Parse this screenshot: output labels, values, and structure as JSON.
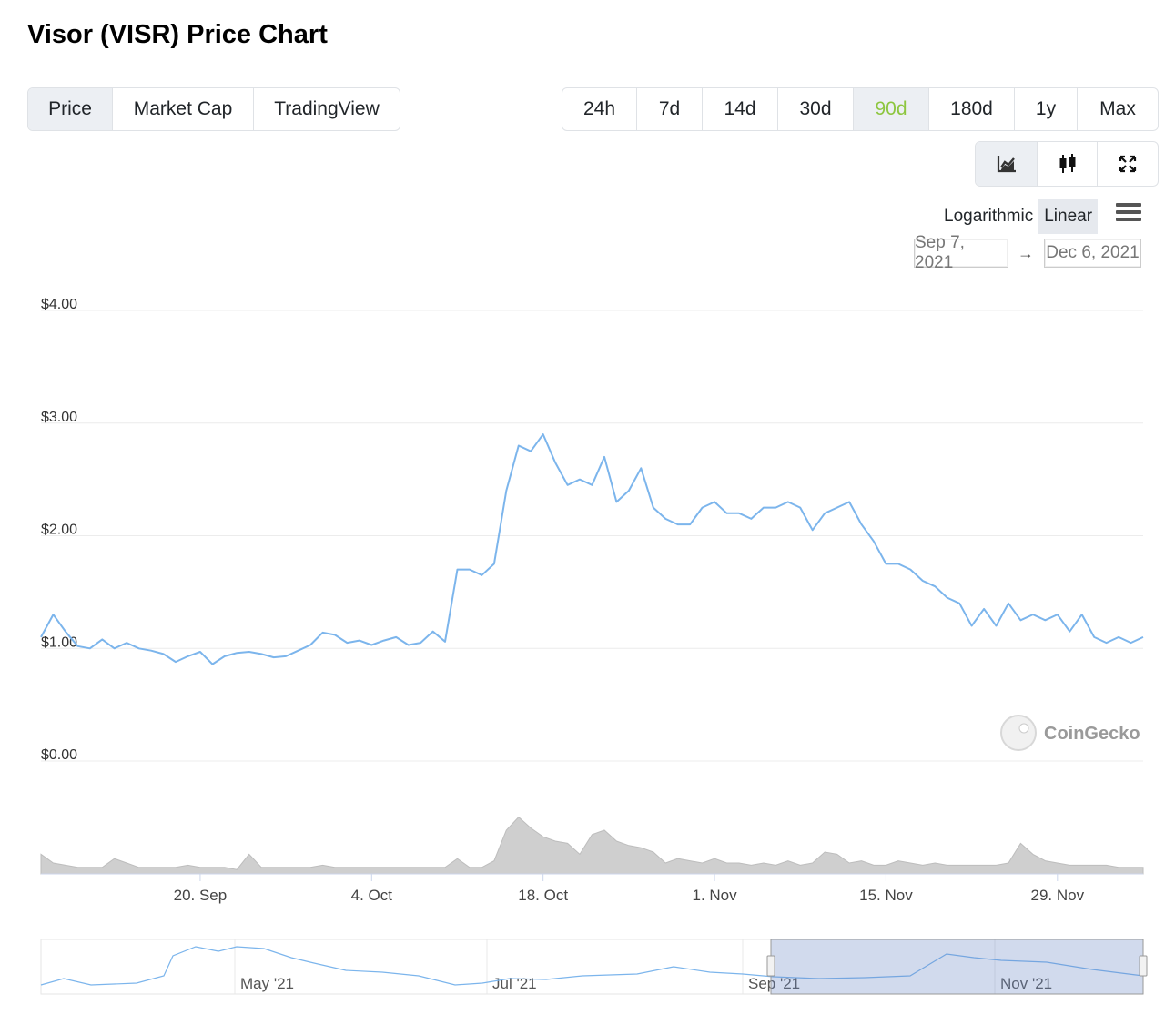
{
  "page": {
    "title": "Visor (VISR) Price Chart"
  },
  "view_tabs": [
    {
      "label": "Price",
      "active": true
    },
    {
      "label": "Market Cap",
      "active": false
    },
    {
      "label": "TradingView",
      "active": false
    }
  ],
  "range_tabs": [
    {
      "label": "24h",
      "active": false
    },
    {
      "label": "7d",
      "active": false
    },
    {
      "label": "14d",
      "active": false
    },
    {
      "label": "30d",
      "active": false
    },
    {
      "label": "90d",
      "active": true
    },
    {
      "label": "180d",
      "active": false
    },
    {
      "label": "1y",
      "active": false
    },
    {
      "label": "Max",
      "active": false
    }
  ],
  "chart_type_buttons": [
    {
      "icon": "line-chart-icon",
      "active": true
    },
    {
      "icon": "candlestick-icon",
      "active": false
    },
    {
      "icon": "fullscreen-icon",
      "active": false
    }
  ],
  "scale": {
    "logarithmic": "Logarithmic",
    "linear": "Linear",
    "active": "Linear"
  },
  "date_range": {
    "from": "Sep 7, 2021",
    "arrow": "→",
    "to": "Dec 6, 2021"
  },
  "watermark": "CoinGecko",
  "colors": {
    "accent_green": "#8dc63f",
    "line": "#7cb5ec",
    "volume": "#c8c8c8",
    "navigator_mask": "rgba(102,133,194,0.3)"
  },
  "navigator": {
    "labels": [
      "May '21",
      "Jul '21",
      "Sep '21",
      "Nov '21"
    ]
  },
  "chart_data": {
    "type": "line",
    "title": "",
    "xlabel": "",
    "ylabel": "",
    "ylim": [
      0,
      4
    ],
    "yticks": [
      "$0.00",
      "$1.00",
      "$2.00",
      "$3.00",
      "$4.00"
    ],
    "yticks_values": [
      0,
      1,
      2,
      3,
      4
    ],
    "xlim": [
      "2021-09-07",
      "2021-12-06"
    ],
    "xticks": [
      {
        "date": "2021-09-20",
        "label": "20. Sep"
      },
      {
        "date": "2021-10-04",
        "label": "4. Oct"
      },
      {
        "date": "2021-10-18",
        "label": "18. Oct"
      },
      {
        "date": "2021-11-01",
        "label": "1. Nov"
      },
      {
        "date": "2021-11-15",
        "label": "15. Nov"
      },
      {
        "date": "2021-11-29",
        "label": "29. Nov"
      }
    ],
    "grid": true,
    "series": [
      {
        "x": [
          "2021-09-07",
          "2021-09-08",
          "2021-09-09",
          "2021-09-10",
          "2021-09-11",
          "2021-09-12",
          "2021-09-13",
          "2021-09-14",
          "2021-09-15",
          "2021-09-16",
          "2021-09-17",
          "2021-09-18",
          "2021-09-19",
          "2021-09-20",
          "2021-09-21",
          "2021-09-22",
          "2021-09-23",
          "2021-09-24",
          "2021-09-25",
          "2021-09-26",
          "2021-09-27",
          "2021-09-28",
          "2021-09-29",
          "2021-09-30",
          "2021-10-01",
          "2021-10-02",
          "2021-10-03",
          "2021-10-04",
          "2021-10-05",
          "2021-10-06",
          "2021-10-07",
          "2021-10-08",
          "2021-10-09",
          "2021-10-10",
          "2021-10-11",
          "2021-10-12",
          "2021-10-13",
          "2021-10-14",
          "2021-10-15",
          "2021-10-16",
          "2021-10-17",
          "2021-10-18",
          "2021-10-19",
          "2021-10-20",
          "2021-10-21",
          "2021-10-22",
          "2021-10-23",
          "2021-10-24",
          "2021-10-25",
          "2021-10-26",
          "2021-10-27",
          "2021-10-28",
          "2021-10-29",
          "2021-10-30",
          "2021-10-31",
          "2021-11-01",
          "2021-11-02",
          "2021-11-03",
          "2021-11-04",
          "2021-11-05",
          "2021-11-06",
          "2021-11-07",
          "2021-11-08",
          "2021-11-09",
          "2021-11-10",
          "2021-11-11",
          "2021-11-12",
          "2021-11-13",
          "2021-11-14",
          "2021-11-15",
          "2021-11-16",
          "2021-11-17",
          "2021-11-18",
          "2021-11-19",
          "2021-11-20",
          "2021-11-21",
          "2021-11-22",
          "2021-11-23",
          "2021-11-24",
          "2021-11-25",
          "2021-11-26",
          "2021-11-27",
          "2021-11-28",
          "2021-11-29",
          "2021-11-30",
          "2021-12-01",
          "2021-12-02",
          "2021-12-03",
          "2021-12-04",
          "2021-12-05",
          "2021-12-06"
        ],
        "y": [
          1.1,
          1.3,
          1.15,
          1.02,
          1.0,
          1.08,
          1.0,
          1.05,
          1.0,
          0.98,
          0.95,
          0.88,
          0.93,
          0.97,
          0.86,
          0.93,
          0.96,
          0.97,
          0.95,
          0.92,
          0.93,
          0.98,
          1.03,
          1.14,
          1.12,
          1.05,
          1.07,
          1.03,
          1.07,
          1.1,
          1.03,
          1.05,
          1.15,
          1.06,
          1.7,
          1.7,
          1.65,
          1.75,
          2.4,
          2.8,
          2.75,
          2.9,
          2.65,
          2.45,
          2.5,
          2.45,
          2.7,
          2.3,
          2.4,
          2.6,
          2.25,
          2.15,
          2.1,
          2.1,
          2.25,
          2.3,
          2.2,
          2.2,
          2.15,
          2.25,
          2.25,
          2.3,
          2.25,
          2.05,
          2.2,
          2.25,
          2.3,
          2.1,
          1.95,
          1.75,
          1.75,
          1.7,
          1.6,
          1.55,
          1.45,
          1.4,
          1.2,
          1.35,
          1.2,
          1.4,
          1.25,
          1.3,
          1.25,
          1.3,
          1.15,
          1.3,
          1.1,
          1.05,
          1.1,
          1.05,
          1.1
        ]
      }
    ],
    "volume_series": {
      "description_free": true,
      "y": [
        18,
        10,
        8,
        6,
        6,
        6,
        14,
        10,
        6,
        6,
        6,
        6,
        8,
        6,
        6,
        6,
        4,
        18,
        6,
        6,
        6,
        6,
        6,
        8,
        6,
        6,
        6,
        6,
        6,
        6,
        6,
        6,
        6,
        6,
        14,
        6,
        6,
        12,
        40,
        52,
        42,
        34,
        30,
        28,
        18,
        36,
        40,
        30,
        26,
        24,
        20,
        10,
        14,
        12,
        10,
        14,
        10,
        10,
        8,
        10,
        8,
        12,
        8,
        10,
        20,
        18,
        10,
        12,
        8,
        8,
        12,
        10,
        8,
        10,
        8,
        8,
        8,
        8,
        8,
        10,
        28,
        18,
        12,
        10,
        8,
        8,
        8,
        8,
        6,
        6,
        6
      ]
    }
  }
}
